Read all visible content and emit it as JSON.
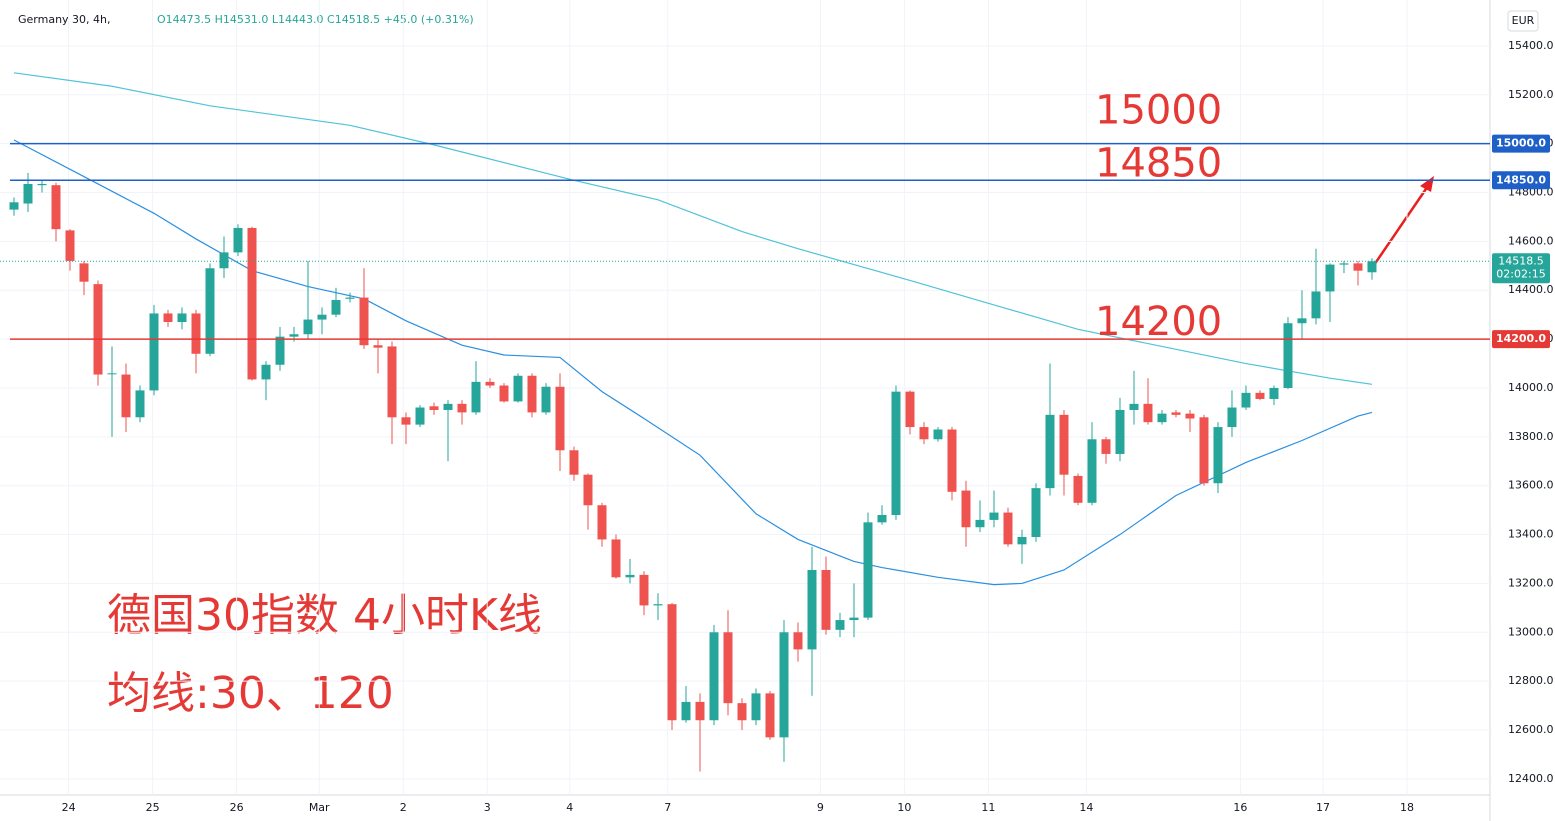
{
  "chart_data": {
    "type": "candlestick",
    "title": "Germany 30, 4h,",
    "legend_text": "O14473.5 H14531.0 L14443.0 C14518.5 +45.0 (+0.31%)",
    "currency": "EUR",
    "annotations": [
      "德国30指数 4小时K线",
      "均线:30、120"
    ],
    "up_color": "#26a69a",
    "down_color": "#ef5350",
    "xlim": [
      -1,
      105.43
    ],
    "ylim": [
      12334,
      15588
    ],
    "xticks": [
      {
        "value": 3.9,
        "label": "24"
      },
      {
        "value": 9.9,
        "label": "25"
      },
      {
        "value": 15.9,
        "label": "26"
      },
      {
        "value": 21.8,
        "label": "Mar"
      },
      {
        "value": 27.8,
        "label": "2"
      },
      {
        "value": 33.8,
        "label": "3"
      },
      {
        "value": 39.7,
        "label": "4"
      },
      {
        "value": 46.7,
        "label": "7"
      },
      {
        "value": 57.6,
        "label": "9"
      },
      {
        "value": 63.6,
        "label": "10"
      },
      {
        "value": 69.6,
        "label": "11"
      },
      {
        "value": 76.6,
        "label": "14"
      },
      {
        "value": 87.6,
        "label": "16"
      },
      {
        "value": 93.5,
        "label": "17"
      },
      {
        "value": 99.5,
        "label": "18"
      }
    ],
    "yticks": [
      {
        "value": 12400,
        "label": "12400.0"
      },
      {
        "value": 12600,
        "label": "12600.0"
      },
      {
        "value": 12800,
        "label": "12800.0"
      },
      {
        "value": 13000,
        "label": "13000.0"
      },
      {
        "value": 13200,
        "label": "13200.0"
      },
      {
        "value": 13400,
        "label": "13400.0"
      },
      {
        "value": 13600,
        "label": "13600.0"
      },
      {
        "value": 13800,
        "label": "13800.0"
      },
      {
        "value": 14000,
        "label": "14000.0"
      },
      {
        "value": 14200,
        "label": "14200.0"
      },
      {
        "value": 14400,
        "label": "14400.0"
      },
      {
        "value": 14600,
        "label": "14600.0"
      },
      {
        "value": 14800,
        "label": "14800.0"
      },
      {
        "value": 15000,
        "label": "15000.0"
      },
      {
        "value": 15200,
        "label": "15200.0"
      },
      {
        "value": 15400,
        "label": "15400.0"
      }
    ],
    "levels": [
      {
        "value": 15000,
        "label": "15000.0",
        "annotation": "15000",
        "color": "#1e5fc8"
      },
      {
        "value": 14850,
        "label": "14850.0",
        "annotation": "14850",
        "color": "#1e5fc8"
      },
      {
        "value": 14200,
        "label": "14200.0",
        "annotation": "14200",
        "color": "#e53935"
      }
    ],
    "last_price": 14518.5,
    "countdown": "02:02:15",
    "x": [
      0,
      1,
      2,
      3,
      4,
      5,
      6,
      7,
      8,
      9,
      10,
      11,
      12,
      13,
      14,
      15,
      16,
      17,
      18,
      19,
      20,
      21,
      22,
      23,
      24,
      25,
      26,
      27,
      28,
      29,
      30,
      31,
      32,
      33,
      34,
      35,
      36,
      37,
      38,
      39,
      40,
      41,
      42,
      43,
      44,
      45,
      46,
      47,
      48,
      49,
      50,
      51,
      52,
      53,
      54,
      55,
      56,
      57,
      58,
      59,
      60,
      61,
      62,
      63,
      64,
      65,
      66,
      67,
      68,
      69,
      70,
      71,
      72,
      73,
      74,
      75,
      76,
      77,
      78,
      79,
      80,
      81,
      82,
      83,
      84,
      85,
      86,
      87,
      88,
      89,
      90,
      91,
      92,
      93,
      94,
      95,
      96,
      97
    ],
    "open": [
      14730,
      14755,
      14830,
      14830,
      14645,
      14510,
      14425,
      14060,
      14055,
      13880,
      13990,
      14305,
      14270,
      14305,
      14140,
      14490,
      14555,
      14655,
      14035,
      14095,
      14210,
      14220,
      14280,
      14300,
      14365,
      14370,
      14175,
      14170,
      13880,
      13850,
      13925,
      13910,
      13935,
      13900,
      14025,
      14010,
      13945,
      14050,
      13900,
      14005,
      13745,
      13645,
      13520,
      13380,
      13225,
      13235,
      13110,
      13115,
      12640,
      12715,
      12640,
      13000,
      12710,
      12640,
      12750,
      12570,
      13000,
      12930,
      13255,
      13010,
      13050,
      13060,
      13450,
      13480,
      13985,
      13840,
      13790,
      13830,
      13580,
      13430,
      13460,
      13490,
      13360,
      13390,
      13590,
      13890,
      13640,
      13530,
      13790,
      13730,
      13910,
      13935,
      13860,
      13900,
      13895,
      13880,
      13610,
      13840,
      13920,
      13980,
      13955,
      14000,
      14265,
      14285,
      14395,
      14505,
      14510,
      14473.5
    ],
    "high": [
      14780,
      14880,
      14850,
      14840,
      14650,
      14520,
      14440,
      14170,
      14100,
      14010,
      14340,
      14320,
      14330,
      14320,
      14510,
      14620,
      14670,
      14660,
      14110,
      14250,
      14250,
      14520,
      14330,
      14410,
      14390,
      14490,
      14200,
      14190,
      13900,
      13930,
      13940,
      13950,
      13950,
      14110,
      14040,
      14020,
      14060,
      14060,
      14020,
      14060,
      13760,
      13650,
      13530,
      13400,
      13300,
      13250,
      13160,
      13120,
      12780,
      12750,
      13030,
      13090,
      12730,
      12770,
      12760,
      13050,
      13040,
      13350,
      13310,
      13080,
      13200,
      13490,
      13520,
      14010,
      13990,
      13860,
      13840,
      13840,
      13620,
      13540,
      13580,
      13510,
      13420,
      13610,
      14100,
      13910,
      13650,
      13860,
      13800,
      13960,
      14070,
      14040,
      13910,
      13910,
      13910,
      13890,
      13860,
      13990,
      14010,
      13990,
      14010,
      14290,
      14400,
      14570,
      14510,
      14520,
      14520,
      14531
    ],
    "low": [
      14705,
      14720,
      14800,
      14600,
      14480,
      14380,
      14010,
      13800,
      13820,
      13860,
      13970,
      14250,
      14240,
      14060,
      14130,
      14450,
      14540,
      14030,
      13950,
      14070,
      14190,
      14200,
      14220,
      14290,
      14350,
      14160,
      14060,
      13770,
      13770,
      13840,
      13890,
      13700,
      13850,
      13890,
      14000,
      13940,
      13940,
      13880,
      13890,
      13660,
      13620,
      13420,
      13350,
      13220,
      13200,
      13070,
      13050,
      12600,
      12630,
      12430,
      12620,
      12660,
      12600,
      12620,
      12560,
      12470,
      12880,
      12740,
      12990,
      12980,
      12980,
      13050,
      13440,
      13460,
      13810,
      13770,
      13780,
      13540,
      13350,
      13410,
      13430,
      13350,
      13280,
      13370,
      13560,
      13560,
      13520,
      13520,
      13690,
      13700,
      13850,
      13850,
      13850,
      13880,
      13820,
      13600,
      13570,
      13800,
      13910,
      13950,
      13930,
      13995,
      14200,
      14260,
      14270,
      14470,
      14420,
      14443
    ],
    "close": [
      14760,
      14835,
      14835,
      14650,
      14520,
      14435,
      14055,
      14060,
      13880,
      13990,
      14305,
      14270,
      14305,
      14140,
      14490,
      14555,
      14655,
      14035,
      14095,
      14210,
      14220,
      14280,
      14300,
      14360,
      14370,
      14175,
      14165,
      13880,
      13850,
      13920,
      13910,
      13935,
      13900,
      14025,
      14010,
      13945,
      14050,
      13900,
      14005,
      13745,
      13645,
      13520,
      13380,
      13225,
      13235,
      13110,
      13115,
      12640,
      12715,
      12640,
      13000,
      12710,
      12640,
      12750,
      12570,
      13000,
      12930,
      13255,
      13010,
      13050,
      13060,
      13450,
      13480,
      13985,
      13840,
      13790,
      13830,
      13575,
      13430,
      13460,
      13490,
      13360,
      13390,
      13590,
      13890,
      13645,
      13530,
      13790,
      13730,
      13910,
      13935,
      13860,
      13895,
      13890,
      13875,
      13610,
      13840,
      13920,
      13980,
      13955,
      14000,
      14265,
      14285,
      14395,
      14505,
      14510,
      14480,
      14518.5
    ],
    "series": [
      {
        "color": "#4fc3d9",
        "x": [
          0,
          7,
          14,
          24,
          30,
          40,
          46,
          52,
          56,
          64,
          70,
          76,
          82,
          88,
          94,
          97
        ],
        "values": [
          15290,
          15235,
          15155,
          15075,
          14995,
          14850,
          14770,
          14640,
          14570,
          14440,
          14340,
          14240,
          14170,
          14100,
          14040,
          14015
        ]
      },
      {
        "color": "#2b8fe0",
        "x": [
          0,
          6,
          10,
          13,
          17,
          21,
          25,
          28,
          32,
          35,
          39,
          42,
          45,
          49,
          53,
          56,
          60,
          62,
          66,
          70,
          72,
          75,
          79,
          83,
          88,
          92,
          96,
          97
        ],
        "values": [
          15015,
          14835,
          14715,
          14610,
          14480,
          14415,
          14365,
          14275,
          14175,
          14135,
          14125,
          13985,
          13875,
          13725,
          13485,
          13380,
          13290,
          13265,
          13225,
          13195,
          13200,
          13255,
          13400,
          13560,
          13695,
          13785,
          13885,
          13900
        ]
      }
    ]
  }
}
